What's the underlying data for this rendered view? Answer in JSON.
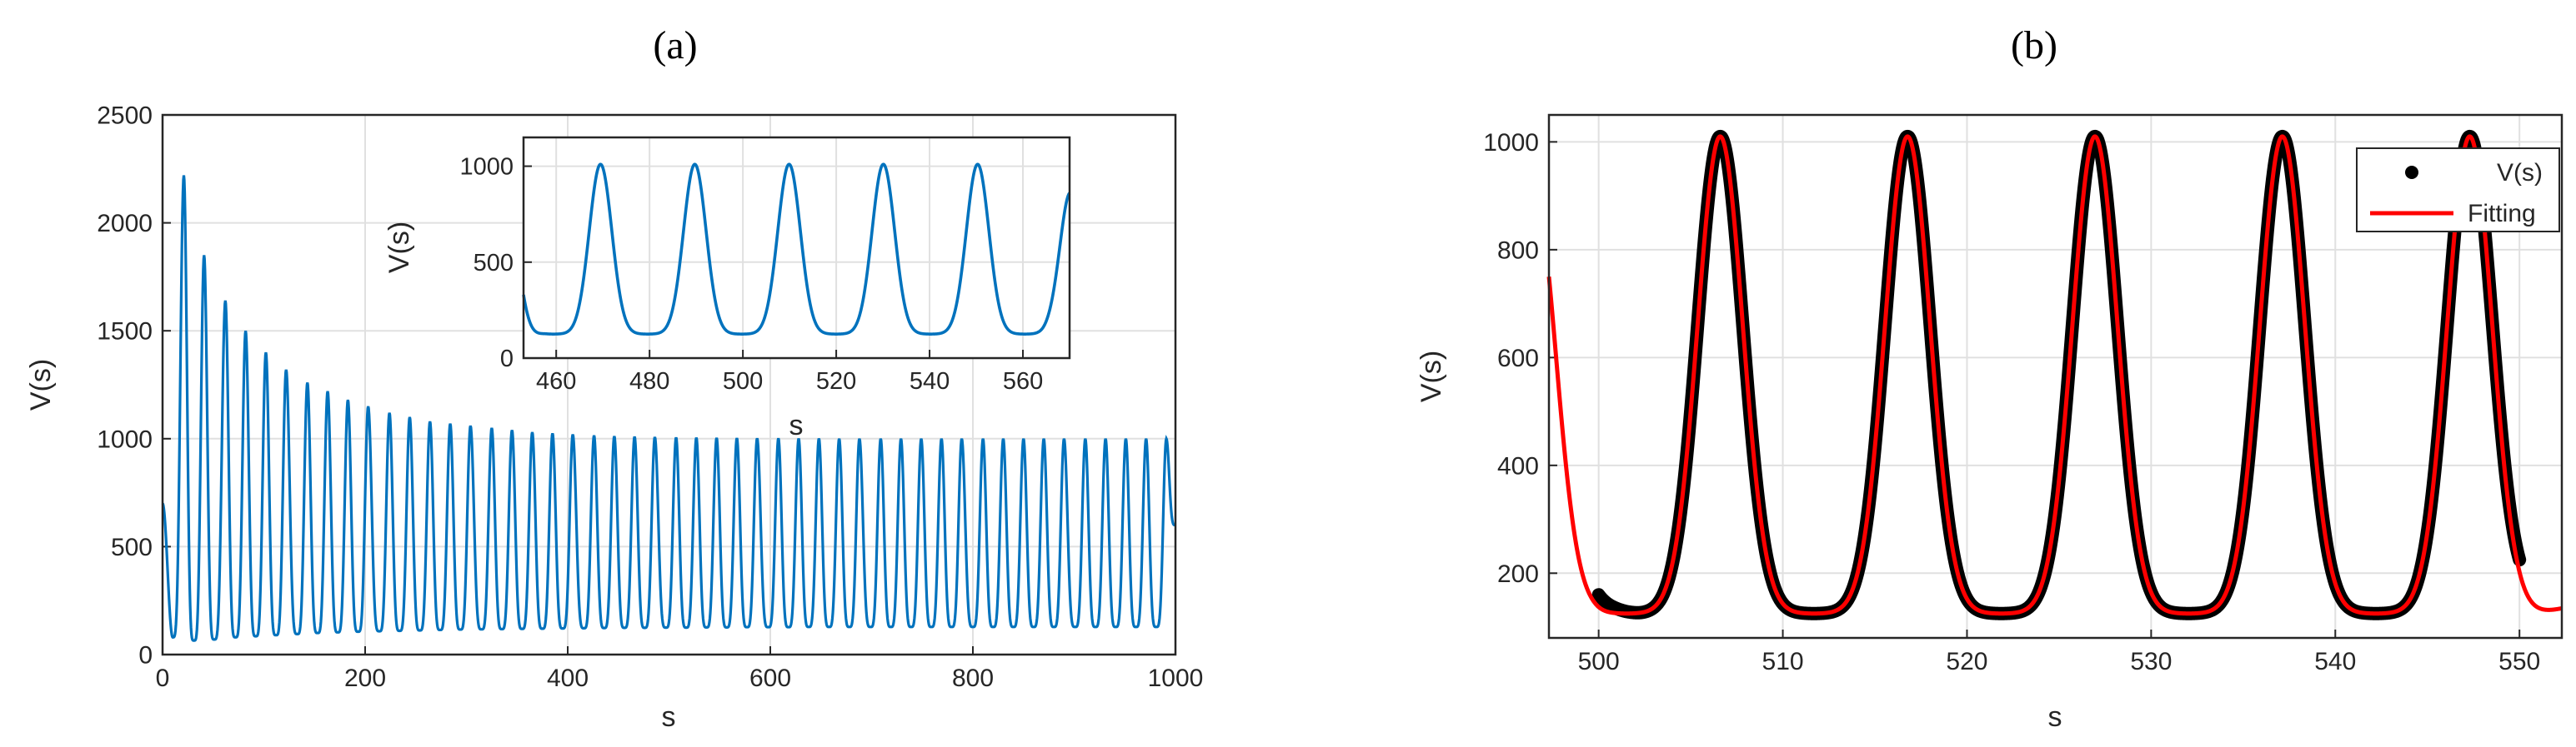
{
  "figure": {
    "panel_a_label": "(a)",
    "panel_b_label": "(b)"
  },
  "colors": {
    "blue": "#0072BD",
    "red": "#FF0000",
    "black": "#000000",
    "grid": "#E0E0E0"
  },
  "chart_data": [
    {
      "id": "a-main",
      "type": "line",
      "title": "",
      "xlabel": "s",
      "ylabel": "V(s)",
      "xlim": [
        0,
        1000
      ],
      "ylim": [
        0,
        2500
      ],
      "xticks": [
        0,
        200,
        400,
        600,
        800,
        1000
      ],
      "yticks": [
        0,
        500,
        1000,
        1500,
        2000,
        2500
      ],
      "grid": true,
      "series": [
        {
          "color": "#0072BD",
          "period": 20.2,
          "x_start": 0,
          "x_end": 1000,
          "peaks": [
            {
              "x": 21,
              "y": 2220
            },
            {
              "x": 41,
              "y": 1850
            },
            {
              "x": 62,
              "y": 1640
            },
            {
              "x": 82,
              "y": 1500
            },
            {
              "x": 102,
              "y": 1400
            },
            {
              "x": 122,
              "y": 1320
            },
            {
              "x": 143,
              "y": 1260
            },
            {
              "x": 163,
              "y": 1220
            },
            {
              "x": 183,
              "y": 1180
            },
            {
              "x": 203,
              "y": 1150
            },
            {
              "x": 224,
              "y": 1120
            },
            {
              "x": 244,
              "y": 1100
            },
            {
              "x": 264,
              "y": 1080
            },
            {
              "x": 284,
              "y": 1070
            },
            {
              "x": 304,
              "y": 1060
            },
            {
              "x": 325,
              "y": 1050
            },
            {
              "x": 345,
              "y": 1040
            },
            {
              "x": 365,
              "y": 1030
            },
            {
              "x": 385,
              "y": 1025
            },
            {
              "x": 405,
              "y": 1020
            },
            {
              "x": 426,
              "y": 1015
            },
            {
              "x": 446,
              "y": 1012
            },
            {
              "x": 466,
              "y": 1010
            },
            {
              "x": 486,
              "y": 1008
            },
            {
              "x": 507,
              "y": 1006
            },
            {
              "x": 527,
              "y": 1005
            },
            {
              "x": 547,
              "y": 1004
            },
            {
              "x": 567,
              "y": 1003
            },
            {
              "x": 587,
              "y": 1002
            },
            {
              "x": 608,
              "y": 1002
            },
            {
              "x": 628,
              "y": 1001
            },
            {
              "x": 648,
              "y": 1001
            },
            {
              "x": 668,
              "y": 1000
            },
            {
              "x": 688,
              "y": 1000
            },
            {
              "x": 709,
              "y": 1000
            },
            {
              "x": 729,
              "y": 1000
            },
            {
              "x": 749,
              "y": 1000
            },
            {
              "x": 769,
              "y": 1000
            },
            {
              "x": 789,
              "y": 1000
            },
            {
              "x": 810,
              "y": 1000
            },
            {
              "x": 830,
              "y": 1000
            },
            {
              "x": 850,
              "y": 1000
            },
            {
              "x": 870,
              "y": 1000
            },
            {
              "x": 890,
              "y": 1000
            },
            {
              "x": 911,
              "y": 1000
            },
            {
              "x": 931,
              "y": 1000
            },
            {
              "x": 951,
              "y": 1000
            },
            {
              "x": 971,
              "y": 1000
            },
            {
              "x": 991,
              "y": 1000
            }
          ],
          "troughs": [
            {
              "x": 0,
              "y": 700
            },
            {
              "x": 10,
              "y": 80
            },
            {
              "x": 31,
              "y": 65
            },
            {
              "x": 51,
              "y": 70
            },
            {
              "x": 72,
              "y": 80
            },
            {
              "x": 92,
              "y": 85
            },
            {
              "x": 112,
              "y": 90
            },
            {
              "x": 133,
              "y": 95
            },
            {
              "x": 153,
              "y": 100
            },
            {
              "x": 173,
              "y": 103
            },
            {
              "x": 193,
              "y": 106
            },
            {
              "x": 214,
              "y": 108
            },
            {
              "x": 234,
              "y": 110
            },
            {
              "x": 254,
              "y": 112
            },
            {
              "x": 274,
              "y": 114
            },
            {
              "x": 294,
              "y": 116
            },
            {
              "x": 315,
              "y": 117
            },
            {
              "x": 335,
              "y": 118
            },
            {
              "x": 355,
              "y": 119
            },
            {
              "x": 375,
              "y": 120
            },
            {
              "x": 395,
              "y": 121
            },
            {
              "x": 416,
              "y": 122
            },
            {
              "x": 436,
              "y": 123
            },
            {
              "x": 456,
              "y": 124
            },
            {
              "x": 476,
              "y": 124
            },
            {
              "x": 497,
              "y": 125
            },
            {
              "x": 517,
              "y": 125
            },
            {
              "x": 537,
              "y": 126
            },
            {
              "x": 557,
              "y": 126
            },
            {
              "x": 577,
              "y": 127
            },
            {
              "x": 598,
              "y": 127
            },
            {
              "x": 618,
              "y": 127
            },
            {
              "x": 638,
              "y": 128
            },
            {
              "x": 658,
              "y": 128
            },
            {
              "x": 678,
              "y": 128
            },
            {
              "x": 699,
              "y": 128
            },
            {
              "x": 719,
              "y": 128
            },
            {
              "x": 739,
              "y": 128
            },
            {
              "x": 759,
              "y": 128
            },
            {
              "x": 779,
              "y": 128
            },
            {
              "x": 800,
              "y": 128
            },
            {
              "x": 820,
              "y": 128
            },
            {
              "x": 840,
              "y": 128
            },
            {
              "x": 860,
              "y": 128
            },
            {
              "x": 880,
              "y": 128
            },
            {
              "x": 901,
              "y": 128
            },
            {
              "x": 921,
              "y": 128
            },
            {
              "x": 941,
              "y": 128
            },
            {
              "x": 961,
              "y": 128
            },
            {
              "x": 981,
              "y": 128
            },
            {
              "x": 1000,
              "y": 600
            }
          ]
        }
      ]
    },
    {
      "id": "a-inset",
      "type": "line",
      "title": "",
      "xlabel": "s",
      "ylabel": "V(s)",
      "xlim": [
        453,
        570
      ],
      "ylim": [
        0,
        1150
      ],
      "xticks": [
        460,
        480,
        500,
        520,
        540,
        560
      ],
      "yticks": [
        0,
        500,
        1000
      ],
      "grid": true,
      "series": [
        {
          "color": "#0072BD",
          "peaks_x": [
            469.5,
            489.7,
            509.9,
            530.1,
            550.3
          ],
          "peak_y": 1010,
          "trough_y": 125,
          "x_start": 453,
          "x_end": 570,
          "y_at_start": 330,
          "y_at_end": 860
        }
      ]
    },
    {
      "id": "b",
      "type": "scatter",
      "title": "",
      "xlabel": "s",
      "ylabel": "V(s)",
      "xlim": [
        497.3,
        552.3
      ],
      "ylim": [
        80,
        1050
      ],
      "xticks": [
        500,
        510,
        520,
        530,
        540,
        550
      ],
      "yticks": [
        200,
        400,
        600,
        800,
        1000
      ],
      "grid": true,
      "legend": {
        "position": "top-right",
        "entries": [
          {
            "label": "V(s)",
            "marker": "dot",
            "color": "#000000"
          },
          {
            "label": "Fitting",
            "marker": "line",
            "color": "#FF0000"
          }
        ]
      },
      "series": [
        {
          "name": "V(s)",
          "kind": "dots",
          "color": "#000000",
          "x_start": 500,
          "x_end": 550,
          "peaks_x": [
            506.6,
            516.8,
            527.0,
            537.2,
            547.3
          ],
          "peak_y": 1010,
          "trough_y": 125,
          "y_at_start": 160,
          "y_at_end": 225
        },
        {
          "name": "Fitting",
          "kind": "line",
          "color": "#FF0000",
          "x_start": 497.3,
          "x_end": 552.3,
          "peaks_x": [
            506.6,
            516.8,
            527.0,
            537.2,
            547.3
          ],
          "peak_y": 1010,
          "trough_y": 125,
          "y_at_start": 750,
          "y_at_end": 135
        }
      ]
    }
  ]
}
